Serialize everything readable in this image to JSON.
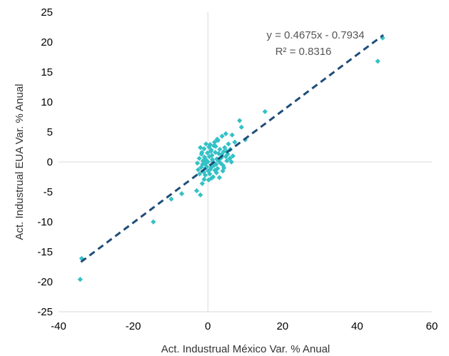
{
  "chart_data": {
    "type": "scatter",
    "title": "",
    "xlabel": "Act. Industrual México Var. % Anual",
    "ylabel": "Act. Industrual EUA Var. % Anual",
    "xlim": [
      -40,
      60
    ],
    "ylim": [
      -25,
      25
    ],
    "xticks": [
      -40,
      -20,
      0,
      20,
      40,
      60
    ],
    "yticks": [
      -25,
      -20,
      -15,
      -10,
      -5,
      0,
      5,
      10,
      15,
      20,
      25
    ],
    "xtick_labels": [
      "-40",
      "-20",
      "0",
      "20",
      "40",
      "60"
    ],
    "ytick_labels": [
      "-25",
      "-20",
      "-15",
      "-10",
      "-5",
      "0",
      "5",
      "10",
      "15",
      "20",
      "25"
    ],
    "grid": false,
    "legend": "none",
    "marker_color": "#33C1C6",
    "trend_color": "#1F4E79",
    "trendline": {
      "slope": 0.4675,
      "intercept": -0.7934,
      "x_range": [
        -34,
        47
      ],
      "equation_label": "y = 0.4675x - 0.7934",
      "r2_label": "R² = 0.8316"
    },
    "points": [
      [
        -33.8,
        -16.1
      ],
      [
        -34.2,
        -19.6
      ],
      [
        -14.6,
        -10.0
      ],
      [
        -9.8,
        -6.2
      ],
      [
        -7.0,
        -5.3
      ],
      [
        -3.0,
        -4.8
      ],
      [
        -2.0,
        -5.5
      ],
      [
        -1.5,
        -3.6
      ],
      [
        -1.0,
        -2.9
      ],
      [
        46.8,
        20.7
      ],
      [
        45.5,
        16.8
      ],
      [
        15.3,
        8.4
      ],
      [
        8.5,
        6.9
      ],
      [
        9.0,
        5.8
      ],
      [
        10.0,
        3.7
      ],
      [
        7.2,
        3.3
      ],
      [
        6.5,
        4.5
      ],
      [
        4.8,
        4.7
      ],
      [
        3.8,
        4.3
      ],
      [
        2.5,
        3.8
      ],
      [
        1.8,
        3.3
      ],
      [
        -0.5,
        3.0
      ],
      [
        0.3,
        2.5
      ],
      [
        0.9,
        2.0
      ],
      [
        2.1,
        2.6
      ],
      [
        3.2,
        2.1
      ],
      [
        4.2,
        1.7
      ],
      [
        5.3,
        1.3
      ],
      [
        6.0,
        2.1
      ],
      [
        4.8,
        0.9
      ],
      [
        3.6,
        0.7
      ],
      [
        2.4,
        0.5
      ],
      [
        1.2,
        0.4
      ],
      [
        0.0,
        0.0
      ],
      [
        -0.9,
        0.8
      ],
      [
        -1.7,
        1.3
      ],
      [
        -2.3,
        0.6
      ],
      [
        -1.4,
        -0.4
      ],
      [
        -0.3,
        -0.8
      ],
      [
        0.7,
        -1.2
      ],
      [
        1.6,
        -0.6
      ],
      [
        2.6,
        -1.1
      ],
      [
        3.4,
        -0.2
      ],
      [
        4.3,
        -1.0
      ],
      [
        5.1,
        0.2
      ],
      [
        5.9,
        0.6
      ],
      [
        6.7,
        1.0
      ],
      [
        2.0,
        1.6
      ],
      [
        1.1,
        1.1
      ],
      [
        -0.1,
        1.5
      ],
      [
        -1.0,
        2.2
      ],
      [
        -2.0,
        2.4
      ],
      [
        0.5,
        -2.0
      ],
      [
        1.4,
        -2.5
      ],
      [
        2.3,
        -1.8
      ],
      [
        3.1,
        -2.6
      ],
      [
        4.0,
        -1.5
      ],
      [
        0.2,
        -3.0
      ],
      [
        -0.7,
        -2.2
      ],
      [
        -2.6,
        -1.3
      ],
      [
        -1.8,
        -0.9
      ],
      [
        -1.1,
        -1.7
      ],
      [
        0.4,
        0.9
      ],
      [
        1.5,
        -0.1
      ],
      [
        2.8,
        0.2
      ],
      [
        3.7,
        1.2
      ],
      [
        -0.4,
        0.3
      ],
      [
        1.9,
        -1.4
      ],
      [
        2.9,
        1.4
      ],
      [
        -2.2,
        -2.0
      ],
      [
        0.8,
        1.8
      ],
      [
        1.6,
        2.7
      ],
      [
        4.5,
        2.4
      ],
      [
        5.5,
        3.0
      ],
      [
        6.3,
        0.0
      ],
      [
        -0.8,
        -0.3
      ],
      [
        0.1,
        -1.5
      ],
      [
        1.3,
        0.1
      ],
      [
        2.2,
        -0.4
      ],
      [
        3.3,
        0.6
      ],
      [
        4.1,
        -0.6
      ],
      [
        -1.3,
        0.2
      ],
      [
        -2.8,
        -0.2
      ],
      [
        0.6,
        2.9
      ],
      [
        1.0,
        -2.7
      ],
      [
        2.7,
        3.6
      ],
      [
        -0.6,
        -1.0
      ],
      [
        5.0,
        1.8
      ],
      [
        0.9,
        -0.9
      ],
      [
        -1.6,
        1.6
      ]
    ]
  }
}
